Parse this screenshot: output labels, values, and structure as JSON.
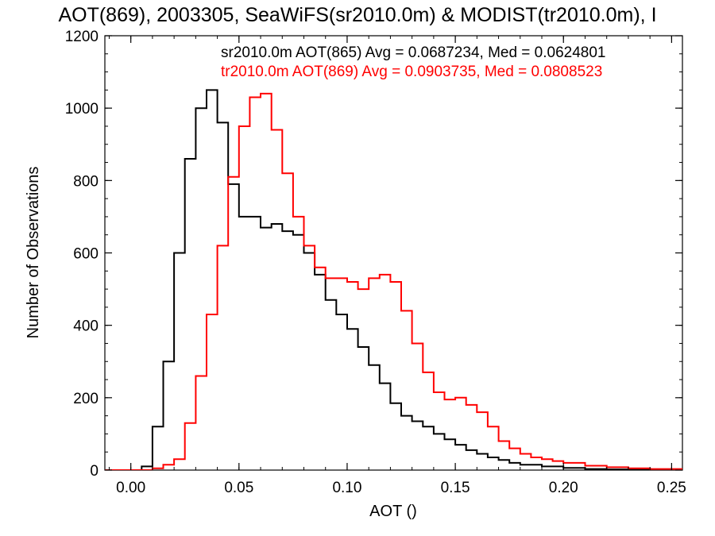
{
  "chart_data": {
    "type": "line",
    "title": "AOT(869), 2003305, SeaWiFS(sr2010.0m) & MODIST(tr2010.0m), I",
    "xlabel": "AOT ()",
    "ylabel": "Number of Observations",
    "xlim": [
      -0.012,
      0.255
    ],
    "ylim": [
      0,
      1200
    ],
    "xticks": [
      0.0,
      0.05,
      0.1,
      0.15,
      0.2,
      0.25
    ],
    "xtick_labels": [
      "0.00",
      "0.05",
      "0.10",
      "0.15",
      "0.20",
      "0.25"
    ],
    "yticks": [
      0,
      200,
      400,
      600,
      800,
      1000,
      1200
    ],
    "ytick_labels": [
      "0",
      "200",
      "400",
      "600",
      "800",
      "1000",
      "1200"
    ],
    "grid": false,
    "legend_position": "top-right",
    "annotations": [
      {
        "text": "sr2010.0m AOT(865) Avg = 0.0687234, Med = 0.0624801",
        "color": "#000000"
      },
      {
        "text": "tr2010.0m AOT(869) Avg = 0.0903735, Med = 0.0808523",
        "color": "#ff0000"
      }
    ],
    "series": [
      {
        "color": "#000000",
        "step": true,
        "x": [
          -0.012,
          0.0,
          0.005,
          0.01,
          0.015,
          0.02,
          0.025,
          0.03,
          0.035,
          0.04,
          0.045,
          0.05,
          0.055,
          0.06,
          0.065,
          0.07,
          0.075,
          0.08,
          0.085,
          0.09,
          0.095,
          0.1,
          0.105,
          0.11,
          0.115,
          0.12,
          0.125,
          0.13,
          0.135,
          0.14,
          0.145,
          0.15,
          0.155,
          0.16,
          0.165,
          0.17,
          0.175,
          0.18,
          0.19,
          0.2,
          0.21,
          0.22,
          0.23,
          0.24,
          0.255
        ],
        "y": [
          0,
          0,
          10,
          120,
          300,
          600,
          860,
          1000,
          1050,
          960,
          790,
          700,
          700,
          670,
          680,
          660,
          650,
          600,
          540,
          470,
          430,
          390,
          340,
          290,
          240,
          185,
          150,
          135,
          120,
          100,
          85,
          70,
          55,
          45,
          35,
          28,
          20,
          15,
          10,
          6,
          3,
          2,
          1,
          1,
          0
        ]
      },
      {
        "color": "#ff0000",
        "step": true,
        "x": [
          -0.012,
          0.01,
          0.015,
          0.02,
          0.025,
          0.03,
          0.035,
          0.04,
          0.045,
          0.05,
          0.055,
          0.06,
          0.065,
          0.07,
          0.075,
          0.08,
          0.085,
          0.09,
          0.095,
          0.1,
          0.105,
          0.11,
          0.115,
          0.12,
          0.125,
          0.13,
          0.135,
          0.14,
          0.145,
          0.15,
          0.155,
          0.16,
          0.165,
          0.17,
          0.175,
          0.18,
          0.185,
          0.19,
          0.195,
          0.2,
          0.21,
          0.22,
          0.23,
          0.24,
          0.255
        ],
        "y": [
          0,
          5,
          15,
          30,
          130,
          260,
          430,
          620,
          810,
          950,
          1030,
          1040,
          940,
          820,
          700,
          620,
          560,
          530,
          530,
          520,
          500,
          530,
          540,
          520,
          440,
          350,
          270,
          215,
          195,
          200,
          180,
          160,
          120,
          80,
          60,
          45,
          35,
          30,
          25,
          20,
          12,
          8,
          5,
          3,
          0
        ]
      }
    ]
  }
}
